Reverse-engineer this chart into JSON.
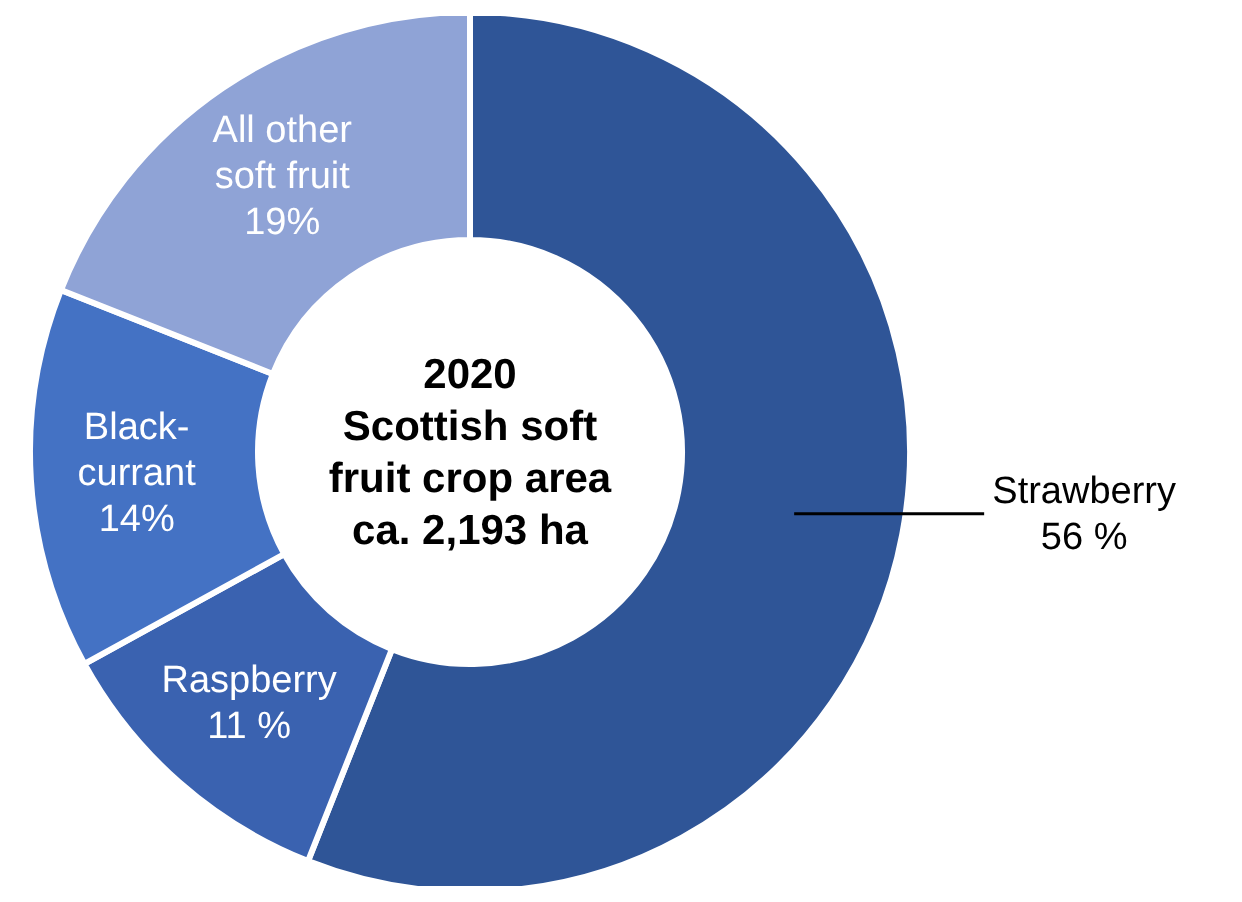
{
  "chart_data": {
    "type": "donut",
    "title": "2020",
    "subtitle": "Scottish soft fruit crop area ca. 2,193 ha",
    "categories": [
      "Strawberry",
      "Raspberry",
      "Black-currant",
      "All other soft fruit"
    ],
    "values": [
      56,
      11,
      14,
      19
    ],
    "value_labels": [
      "56 %",
      "11 %",
      "14%",
      "19%"
    ],
    "colors": [
      "#2f5597",
      "#3a62b0",
      "#4472c4",
      "#8fa3d6"
    ],
    "legend": false
  }
}
